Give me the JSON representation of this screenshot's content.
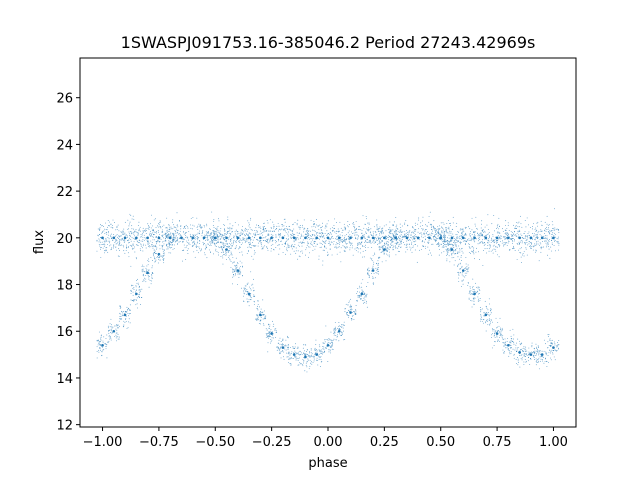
{
  "chart_data": {
    "type": "scatter",
    "title": "1SWASPJ091753.16-385046.2 Period 27243.42969s",
    "xlabel": "phase",
    "ylabel": "flux",
    "xlim": [
      -1.1,
      1.1
    ],
    "ylim": [
      11.9,
      27.7
    ],
    "xticks": [
      -1.0,
      -0.75,
      -0.5,
      -0.25,
      0.0,
      0.25,
      0.5,
      0.75,
      1.0
    ],
    "xtick_labels": [
      "−1.00",
      "−0.75",
      "−0.50",
      "−0.25",
      "0.00",
      "0.25",
      "0.50",
      "0.75",
      "1.00"
    ],
    "yticks": [
      12,
      14,
      16,
      18,
      20,
      22,
      24,
      26
    ],
    "ytick_labels": [
      "12",
      "14",
      "16",
      "18",
      "20",
      "22",
      "24",
      "26"
    ],
    "grid": false,
    "point_color": "#1f77b4",
    "series": [
      {
        "x": [
          -1.0,
          -0.95,
          -0.9,
          -0.85,
          -0.8,
          -0.75,
          -0.7,
          -0.65,
          -0.6,
          -0.55,
          -0.5,
          -0.45,
          -0.4,
          -0.35,
          -0.3,
          -0.25,
          -0.2,
          -0.15,
          -0.1,
          -0.05,
          0.0,
          0.05,
          0.1,
          0.15,
          0.2,
          0.25,
          0.3,
          0.35,
          0.4,
          0.45,
          0.5,
          0.55,
          0.6,
          0.65,
          0.7,
          0.75,
          0.8,
          0.85,
          0.9,
          0.95,
          1.0
        ],
        "y": [
          20.0,
          20.0,
          20.0,
          20.0,
          20.0,
          20.0,
          20.0,
          20.0,
          20.0,
          20.0,
          20.0,
          20.0,
          20.0,
          20.0,
          20.0,
          20.0,
          20.0,
          20.0,
          20.0,
          20.0,
          20.0,
          20.0,
          20.0,
          20.0,
          20.0,
          20.0,
          20.0,
          20.0,
          20.0,
          20.0,
          20.0,
          20.0,
          20.0,
          20.0,
          20.0,
          20.0,
          20.0,
          20.0,
          20.0,
          20.0,
          20.0
        ]
      },
      {
        "x": [
          -1.0,
          -0.95,
          -0.9,
          -0.85,
          -0.8,
          -0.75,
          -0.7,
          -0.5,
          -0.45,
          -0.4,
          -0.35,
          -0.3,
          -0.25,
          -0.2,
          -0.15,
          -0.1,
          -0.05,
          0.0,
          0.05,
          0.1,
          0.15,
          0.2,
          0.25,
          0.3,
          0.5,
          0.55,
          0.6,
          0.65,
          0.7,
          0.75,
          0.8,
          0.85,
          0.9,
          0.95,
          1.0
        ],
        "y": [
          15.4,
          16.0,
          16.7,
          17.6,
          18.5,
          19.3,
          20.0,
          20.0,
          19.5,
          18.6,
          17.6,
          16.7,
          15.9,
          15.3,
          15.0,
          14.9,
          15.0,
          15.4,
          16.0,
          16.8,
          17.6,
          18.6,
          19.5,
          20.0,
          20.0,
          19.5,
          18.6,
          17.6,
          16.7,
          15.9,
          15.4,
          15.1,
          15.0,
          15.0,
          15.3
        ]
      }
    ]
  }
}
